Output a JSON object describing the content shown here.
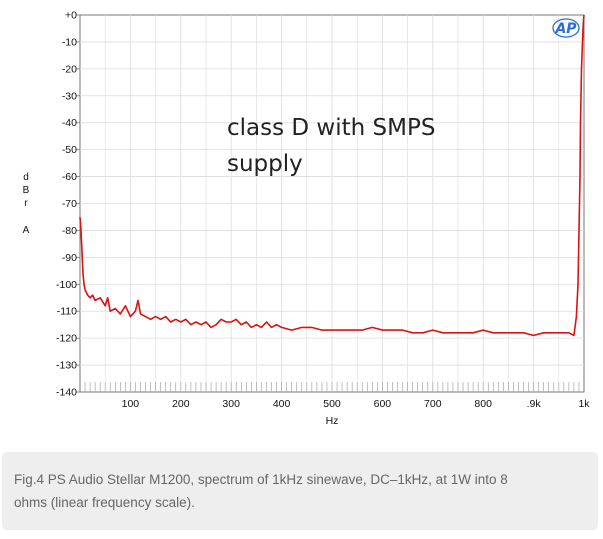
{
  "chart_data": {
    "type": "line",
    "annotation_lines": [
      "class D with SMPS",
      "supply"
    ],
    "xlabel": "Hz",
    "ylabel_letters": [
      "d",
      "B",
      "r",
      "A"
    ],
    "xlim": [
      0,
      1000
    ],
    "ylim": [
      -140,
      0
    ],
    "x_ticks": [
      {
        "value": 100,
        "label": "100"
      },
      {
        "value": 200,
        "label": "200"
      },
      {
        "value": 300,
        "label": "300"
      },
      {
        "value": 400,
        "label": "400"
      },
      {
        "value": 500,
        "label": "500"
      },
      {
        "value": 600,
        "label": "600"
      },
      {
        "value": 700,
        "label": "700"
      },
      {
        "value": 800,
        "label": "800"
      },
      {
        "value": 900,
        "label": ".9k"
      },
      {
        "value": 1000,
        "label": "1k"
      }
    ],
    "y_ticks": [
      {
        "value": 0,
        "label": "+0"
      },
      {
        "value": -10,
        "label": "-10"
      },
      {
        "value": -20,
        "label": "-20"
      },
      {
        "value": -30,
        "label": "-30"
      },
      {
        "value": -40,
        "label": "-40"
      },
      {
        "value": -50,
        "label": "-50"
      },
      {
        "value": -60,
        "label": "-60"
      },
      {
        "value": -70,
        "label": "-70"
      },
      {
        "value": -80,
        "label": "-80"
      },
      {
        "value": -90,
        "label": "-90"
      },
      {
        "value": -100,
        "label": "-100"
      },
      {
        "value": -110,
        "label": "-110"
      },
      {
        "value": -120,
        "label": "-120"
      },
      {
        "value": -130,
        "label": "-130"
      },
      {
        "value": -140,
        "label": "-140"
      }
    ],
    "grid": true,
    "series": [
      {
        "color": "#dd1111",
        "x": [
          0,
          2,
          4,
          6,
          8,
          10,
          15,
          20,
          25,
          30,
          40,
          50,
          55,
          60,
          70,
          80,
          90,
          100,
          110,
          115,
          120,
          130,
          140,
          150,
          160,
          170,
          180,
          190,
          200,
          210,
          220,
          230,
          240,
          250,
          260,
          270,
          280,
          290,
          300,
          310,
          320,
          330,
          340,
          350,
          360,
          370,
          380,
          390,
          400,
          420,
          440,
          460,
          480,
          500,
          520,
          540,
          560,
          580,
          600,
          620,
          640,
          660,
          680,
          700,
          720,
          740,
          760,
          780,
          800,
          820,
          840,
          860,
          880,
          900,
          920,
          940,
          960,
          970,
          980,
          985,
          988,
          990,
          992,
          993,
          994,
          995,
          996,
          997,
          998,
          999,
          1000
        ],
        "y": [
          -75,
          -80,
          -88,
          -96,
          -100,
          -102,
          -104,
          -105,
          -104,
          -106,
          -105,
          -108,
          -105,
          -110,
          -109,
          -111,
          -108,
          -112,
          -110,
          -106,
          -111,
          -112,
          -113,
          -112,
          -113,
          -112,
          -114,
          -113,
          -114,
          -113,
          -115,
          -114,
          -115,
          -114,
          -116,
          -115,
          -113,
          -114,
          -114,
          -113,
          -115,
          -114,
          -116,
          -115,
          -116,
          -114,
          -116,
          -115,
          -116,
          -117,
          -116,
          -116,
          -117,
          -117,
          -117,
          -117,
          -117,
          -116,
          -117,
          -117,
          -117,
          -118,
          -118,
          -117,
          -118,
          -118,
          -118,
          -118,
          -117,
          -118,
          -118,
          -118,
          -118,
          -119,
          -118,
          -118,
          -118,
          -118,
          -119,
          -112,
          -100,
          -80,
          -60,
          -40,
          -30,
          -20,
          -15,
          -10,
          -5,
          -2,
          0
        ]
      }
    ]
  },
  "caption": {
    "line1": "Fig.4 PS Audio Stellar M1200, spectrum of 1kHz sinewave, DC–1kHz, at 1W into 8",
    "line2": "ohms (linear frequency scale)."
  },
  "logo": {
    "text": "AP"
  },
  "colors": {
    "trace": "#dd1111",
    "grid": "#dcdcdc",
    "axis": "#777777",
    "logo": "#2a6fd6"
  }
}
